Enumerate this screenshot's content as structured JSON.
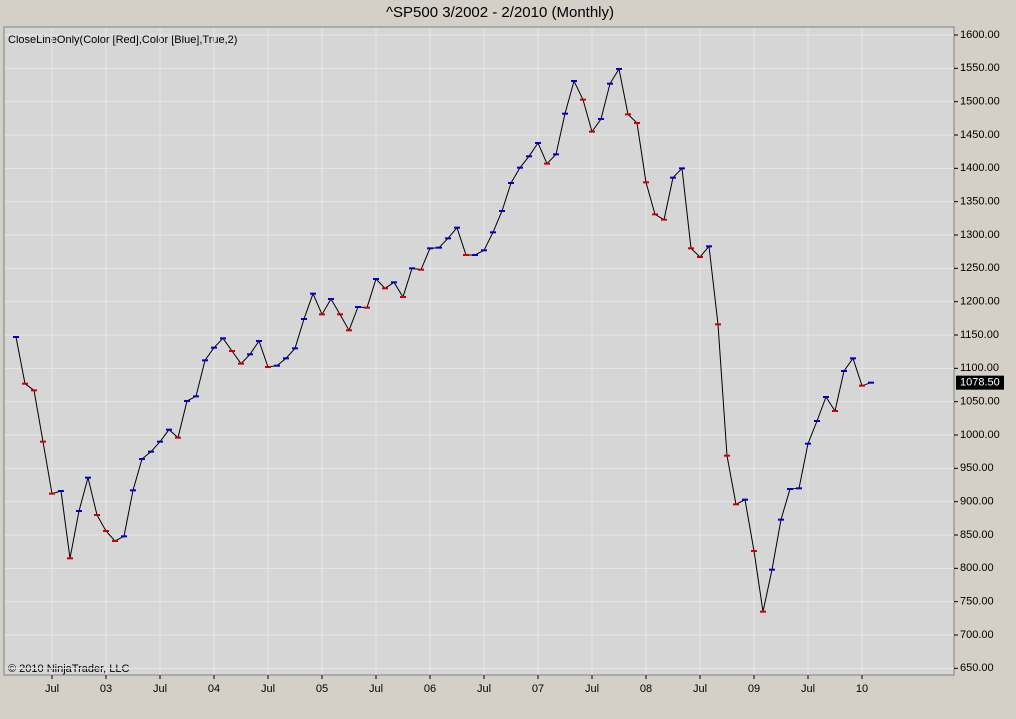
{
  "chart_data": {
    "type": "line",
    "title": "^SP500  3/2002 - 2/2010 (Monthly)",
    "indicator_label": "CloseLineOnly(Color [Red],Color [Blue],True,2)",
    "copyright": "© 2010 NinjaTrader, LLC",
    "categories": [
      null,
      null,
      null,
      null,
      "Jul",
      null,
      null,
      null,
      null,
      null,
      "03",
      null,
      null,
      null,
      null,
      null,
      "Jul",
      null,
      null,
      null,
      null,
      null,
      "04",
      null,
      null,
      null,
      null,
      null,
      "Jul",
      null,
      null,
      null,
      null,
      null,
      "05",
      null,
      null,
      null,
      null,
      null,
      "Jul",
      null,
      null,
      null,
      null,
      null,
      "06",
      null,
      null,
      null,
      null,
      null,
      "Jul",
      null,
      null,
      null,
      null,
      null,
      "07",
      null,
      null,
      null,
      null,
      null,
      "Jul",
      null,
      null,
      null,
      null,
      null,
      "08",
      null,
      null,
      null,
      null,
      null,
      "Jul",
      null,
      null,
      null,
      null,
      null,
      "09",
      null,
      null,
      null,
      null,
      null,
      "Jul",
      null,
      null,
      null,
      null,
      null,
      "10",
      null
    ],
    "values": [
      1147,
      1077,
      1067,
      990,
      912,
      916,
      815,
      886,
      936,
      880,
      856,
      841,
      848,
      917,
      964,
      975,
      990,
      1008,
      996,
      1051,
      1058,
      1112,
      1131,
      1145,
      1126,
      1107,
      1121,
      1141,
      1102,
      1104,
      1115,
      1130,
      1174,
      1212,
      1181,
      1204,
      1181,
      1157,
      1192,
      1191,
      1234,
      1220,
      1229,
      1207,
      1250,
      1248,
      1280,
      1281,
      1295,
      1311,
      1270,
      1270,
      1277,
      1304,
      1336,
      1378,
      1401,
      1418,
      1438,
      1407,
      1421,
      1482,
      1531,
      1503,
      1455,
      1474,
      1527,
      1549,
      1481,
      1468,
      1379,
      1331,
      1323,
      1386,
      1400,
      1280,
      1267,
      1283,
      1166,
      969,
      896,
      903,
      826,
      735,
      798,
      873,
      919,
      920,
      987,
      1021,
      1057,
      1036,
      1096,
      1115,
      1074,
      1078.5
    ],
    "last_label": "1078.50",
    "line_color": "#000000",
    "up_color": "#0000cc",
    "down_color": "#cc0000",
    "ylim": [
      640,
      1612
    ],
    "yticks": [
      {
        "value": 650,
        "label": "650.00"
      },
      {
        "value": 700,
        "label": "700.00"
      },
      {
        "value": 750,
        "label": "750.00"
      },
      {
        "value": 800,
        "label": "800.00"
      },
      {
        "value": 850,
        "label": "850.00"
      },
      {
        "value": 900,
        "label": "900.00"
      },
      {
        "value": 950,
        "label": "950.00"
      },
      {
        "value": 1000,
        "label": "1000.00"
      },
      {
        "value": 1050,
        "label": "1050.00"
      },
      {
        "value": 1100,
        "label": "1100.00"
      },
      {
        "value": 1150,
        "label": "1150.00"
      },
      {
        "value": 1200,
        "label": "1200.00"
      },
      {
        "value": 1250,
        "label": "1250.00"
      },
      {
        "value": 1300,
        "label": "1300.00"
      },
      {
        "value": 1350,
        "label": "1350.00"
      },
      {
        "value": 1400,
        "label": "1400.00"
      },
      {
        "value": 1450,
        "label": "1450.00"
      },
      {
        "value": 1500,
        "label": "1500.00"
      },
      {
        "value": 1550,
        "label": "1550.00"
      },
      {
        "value": 1600,
        "label": "1600.00"
      }
    ],
    "grid": true
  }
}
